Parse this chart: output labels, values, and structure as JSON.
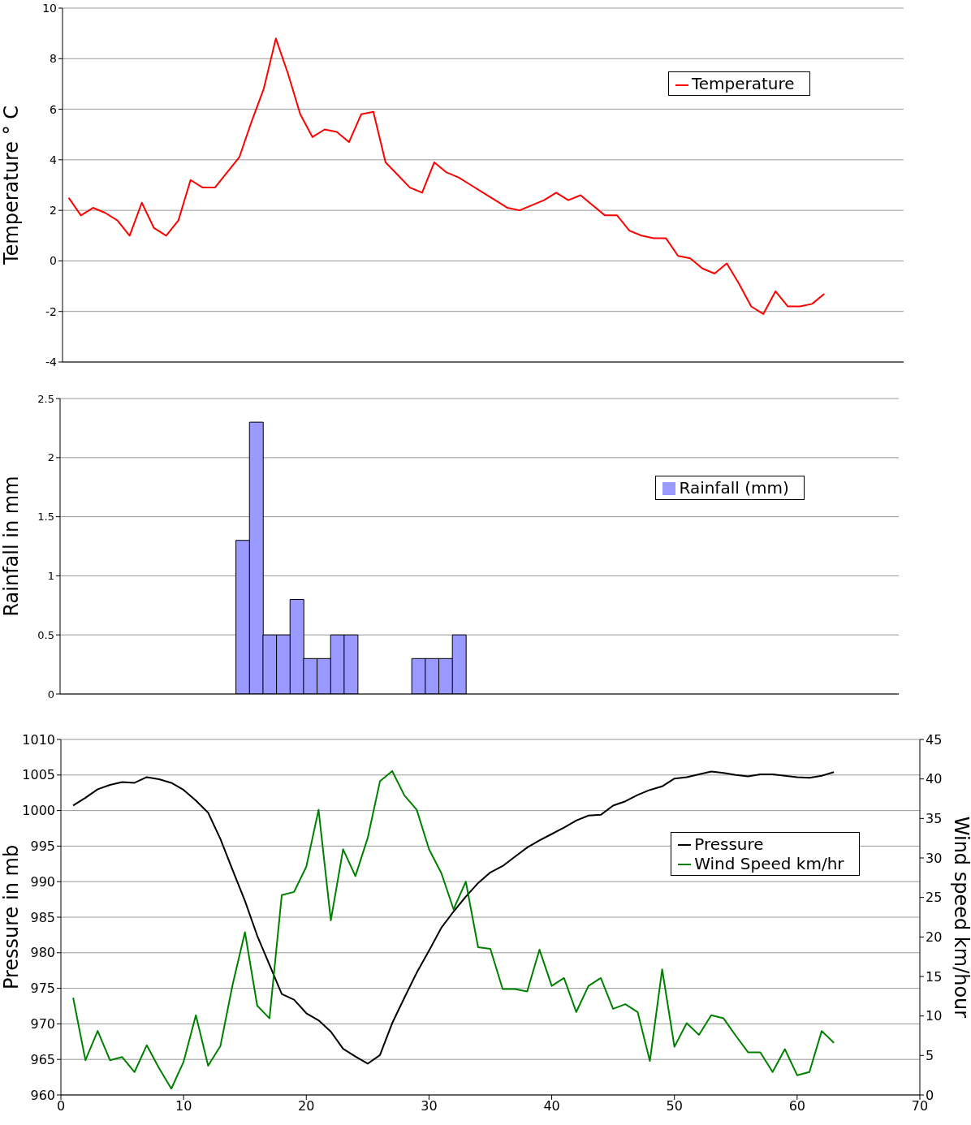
{
  "chart_data": [
    {
      "type": "line",
      "ylabel": "Temperature ° C",
      "categories": [
        null,
        null,
        null,
        null,
        null,
        null,
        null,
        null,
        null,
        null,
        null,
        null,
        null,
        null,
        null,
        null,
        null,
        null,
        null,
        null,
        null,
        null,
        null,
        null,
        null,
        null,
        null,
        null,
        null,
        null,
        null,
        null,
        null,
        null,
        null,
        null,
        null,
        null,
        null,
        null,
        null,
        null,
        null,
        null,
        null,
        null,
        null,
        null,
        null,
        null,
        null,
        null,
        null,
        null,
        null,
        null,
        null,
        null,
        null,
        null,
        null,
        null,
        null
      ],
      "series": [
        {
          "name": "Temperature",
          "color": "#ff0000",
          "values": [
            2.5,
            1.8,
            2.1,
            1.9,
            1.6,
            1.0,
            2.3,
            1.3,
            1.0,
            1.6,
            3.2,
            2.9,
            2.9,
            3.5,
            4.1,
            5.5,
            6.8,
            8.8,
            7.4,
            5.8,
            4.9,
            5.2,
            5.1,
            4.7,
            5.8,
            5.9,
            3.9,
            3.4,
            2.9,
            2.7,
            3.9,
            3.5,
            3.3,
            3.0,
            2.7,
            2.4,
            2.1,
            2.0,
            2.2,
            2.4,
            2.7,
            2.4,
            2.6,
            2.2,
            1.8,
            1.8,
            1.2,
            1.0,
            0.9,
            0.9,
            0.2,
            0.1,
            -0.3,
            -0.5,
            -0.1,
            -0.9,
            -1.8,
            -2.1,
            -1.2,
            -1.8,
            -1.8,
            -1.7,
            -1.3
          ]
        }
      ],
      "ylim": [
        -4,
        10
      ],
      "yticks": [
        -4,
        -2,
        0,
        2,
        4,
        6,
        8,
        10
      ],
      "grid": "y",
      "legend": "top right",
      "tick_labels": "y",
      "marker": "none"
    },
    {
      "type": "bar",
      "ylabel": "Rainfall in mm",
      "categories": [
        null,
        null,
        null,
        null,
        null,
        null,
        null,
        null,
        null,
        null,
        null,
        null,
        null,
        null,
        null,
        null,
        null,
        null,
        null,
        null,
        null,
        null,
        null,
        null,
        null,
        null,
        null,
        null,
        null,
        null,
        null,
        null,
        null,
        null,
        null,
        null,
        null,
        null,
        null,
        null,
        null,
        null,
        null,
        null,
        null,
        null,
        null,
        null,
        null,
        null,
        null,
        null,
        null,
        null,
        null,
        null,
        null,
        null,
        null,
        null,
        null,
        null
      ],
      "series": [
        {
          "name": "Rainfall (mm)",
          "color": "#9999ff",
          "values": [
            0,
            0,
            0,
            0,
            0,
            0,
            0,
            0,
            0,
            0,
            0,
            0,
            0,
            1.3,
            2.3,
            0.5,
            0.5,
            0.8,
            0.3,
            0.3,
            0.5,
            0.5,
            0,
            0,
            0,
            0,
            0.3,
            0.3,
            0.3,
            0.5,
            0,
            0,
            0,
            0,
            0,
            0,
            0,
            0,
            0,
            0,
            0,
            0,
            0,
            0,
            0,
            0,
            0,
            0,
            0,
            0,
            0,
            0,
            0,
            0,
            0,
            0,
            0,
            0,
            0,
            0,
            0,
            0
          ]
        }
      ],
      "ylim": [
        0,
        2.5
      ],
      "yticks": [
        0,
        0.5,
        1,
        1.5,
        2,
        2.5
      ],
      "grid": "y",
      "legend": "right"
    },
    {
      "type": "line",
      "ylabel": "Pressure in mb",
      "y2label": "Wind speed km/hour",
      "x": [
        1,
        2,
        3,
        4,
        5,
        6,
        7,
        8,
        9,
        10,
        11,
        12,
        13,
        14,
        15,
        16,
        17,
        18,
        19,
        20,
        21,
        22,
        23,
        24,
        25,
        26,
        27,
        28,
        29,
        30,
        31,
        32,
        33,
        34,
        35,
        36,
        37,
        38,
        39,
        40,
        41,
        42,
        43,
        44,
        45,
        46,
        47,
        48,
        49,
        50,
        51,
        52,
        53,
        54,
        55,
        56,
        57,
        58,
        59,
        60,
        61,
        62,
        63
      ],
      "series": [
        {
          "name": "Pressure",
          "color": "#000000",
          "values": [
            1000.7,
            1001.8,
            1003.0,
            1003.6,
            1004.0,
            1003.9,
            1004.7,
            1004.4,
            1003.9,
            1002.9,
            1001.4,
            999.7,
            996.0,
            991.6,
            987.3,
            982.4,
            978.3,
            974.2,
            973.4,
            971.5,
            970.5,
            968.9,
            966.5,
            965.4,
            964.4,
            965.6,
            970.1,
            973.7,
            977.2,
            980.3,
            983.5,
            985.8,
            987.9,
            989.8,
            991.3,
            992.2,
            993.5,
            994.8,
            995.8,
            996.7,
            997.6,
            998.6,
            999.3,
            999.4,
            1000.7,
            1001.3,
            1002.2,
            1002.9,
            1003.4,
            1004.5,
            1004.7,
            1005.1,
            1005.5,
            1005.3,
            1005.0,
            1004.8,
            1005.1,
            1005.1,
            1004.9,
            1004.7,
            1004.6,
            1004.9,
            1005.4
          ]
        },
        {
          "name": "Wind Speed km/hr",
          "color": "#008000",
          "axis": "y2",
          "values": [
            12.3,
            4.4,
            8.1,
            4.4,
            4.8,
            2.9,
            6.3,
            3.4,
            0.8,
            4.2,
            10.1,
            3.7,
            6.2,
            14.0,
            20.6,
            11.3,
            9.7,
            25.3,
            25.7,
            28.9,
            36.1,
            22.1,
            31.1,
            27.7,
            32.5,
            39.7,
            41.0,
            37.9,
            36.1,
            31.1,
            28.1,
            23.5,
            27.0,
            18.7,
            18.5,
            13.4,
            13.4,
            13.1,
            18.4,
            13.8,
            14.8,
            10.5,
            13.8,
            14.8,
            10.9,
            11.5,
            10.5,
            4.3,
            15.9,
            6.1,
            9.1,
            7.6,
            10.1,
            9.7,
            7.5,
            5.4,
            5.4,
            2.9,
            5.8,
            2.5,
            2.9,
            8.1,
            6.6
          ]
        }
      ],
      "xlim": [
        0,
        70
      ],
      "xticks": [
        0,
        10,
        20,
        30,
        40,
        50,
        60,
        70
      ],
      "ylim": [
        960,
        1010
      ],
      "yticks": [
        960,
        965,
        970,
        975,
        980,
        985,
        990,
        995,
        1000,
        1005,
        1010
      ],
      "y2lim": [
        0,
        45
      ],
      "y2ticks": [
        0,
        5,
        10,
        15,
        20,
        25,
        30,
        35,
        40,
        45
      ],
      "grid": "y",
      "legend": "right",
      "marker": "none"
    }
  ]
}
